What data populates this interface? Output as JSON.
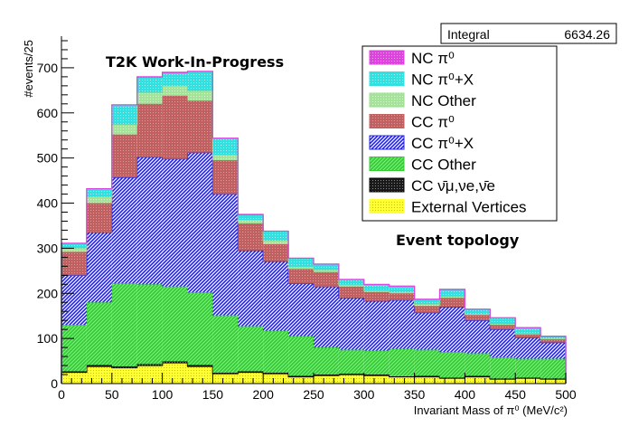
{
  "chart_data": {
    "type": "bar",
    "subtype": "stacked-histogram",
    "xlabel": "Invariant Mass of π⁰ (MeV/c²)",
    "ylabel": "#events/25",
    "xlim": [
      0,
      500
    ],
    "ylim": [
      0,
      770
    ],
    "x_ticks": [
      "0",
      "50",
      "100",
      "150",
      "200",
      "250",
      "300",
      "350",
      "400",
      "450",
      "500"
    ],
    "y_ticks": [
      "0",
      "100",
      "200",
      "300",
      "400",
      "500",
      "600",
      "700"
    ],
    "bin_edges": [
      0,
      25,
      50,
      75,
      100,
      125,
      150,
      175,
      200,
      225,
      250,
      275,
      300,
      325,
      350,
      375,
      400,
      425,
      450,
      475,
      500
    ],
    "annotations": {
      "experiment": "T2K Work-In-Progress",
      "topology": "Event topology"
    },
    "stats": {
      "label": "Integral",
      "value": "6634.26"
    },
    "series": [
      {
        "name": "External Vertices",
        "legend": "External Vertices",
        "color": "#ffff33",
        "pattern": "dots",
        "values": [
          25,
          38,
          35,
          40,
          46,
          38,
          22,
          25,
          22,
          15,
          18,
          20,
          18,
          15,
          15,
          12,
          15,
          10,
          12,
          10
        ]
      },
      {
        "name": "CC nubar",
        "legend": "CC ν̄μ,νe,ν̄e",
        "color": "#000000",
        "pattern": "dots",
        "values": [
          2,
          3,
          3,
          3,
          3,
          3,
          2,
          2,
          2,
          2,
          2,
          2,
          2,
          1,
          2,
          1,
          2,
          1,
          1,
          1
        ]
      },
      {
        "name": "CC Other",
        "legend": "CC Other",
        "color": "#33cc33",
        "pattern": "hatch",
        "values": [
          103,
          139,
          184,
          177,
          166,
          161,
          127,
          100,
          93,
          88,
          60,
          53,
          53,
          61,
          58,
          57,
          50,
          47,
          42,
          44
        ]
      },
      {
        "name": "CC pi0+X",
        "legend": "CC π⁰+X",
        "color": "#2222dd",
        "pattern": "hatch",
        "values": [
          110,
          155,
          235,
          282,
          283,
          310,
          269,
          168,
          154,
          117,
          135,
          115,
          110,
          108,
          82,
          100,
          73,
          62,
          47,
          36
        ]
      },
      {
        "name": "CC pi0",
        "legend": "CC π⁰",
        "color": "#c06060",
        "pattern": "dots",
        "values": [
          52,
          65,
          95,
          118,
          140,
          115,
          75,
          60,
          38,
          32,
          32,
          25,
          20,
          15,
          15,
          20,
          12,
          10,
          7,
          7
        ]
      },
      {
        "name": "NC Other",
        "legend": "NC Other",
        "color": "#99dd88",
        "pattern": "dots",
        "values": [
          8,
          14,
          22,
          25,
          22,
          22,
          12,
          8,
          8,
          5,
          5,
          4,
          3,
          3,
          4,
          3,
          2,
          2,
          2,
          2
        ]
      },
      {
        "name": "NC pi0+X",
        "legend": "NC π⁰+X",
        "color": "#33e0e0",
        "pattern": "dots",
        "values": [
          10,
          17,
          43,
          33,
          28,
          42,
          36,
          10,
          20,
          18,
          12,
          11,
          13,
          12,
          10,
          15,
          10,
          13,
          12,
          4
        ]
      },
      {
        "name": "NC pi0",
        "legend": "NC π⁰",
        "color": "#dd44dd",
        "pattern": "dots",
        "values": [
          1,
          1,
          1,
          2,
          2,
          1,
          1,
          2,
          1,
          1,
          1,
          1,
          1,
          1,
          1,
          1,
          1,
          1,
          1,
          1
        ]
      }
    ],
    "legend_order": [
      "NC pi0",
      "NC pi0+X",
      "NC Other",
      "CC pi0",
      "CC pi0+X",
      "CC Other",
      "CC nubar",
      "External Vertices"
    ],
    "legend_position": "top-right",
    "grid": false
  }
}
